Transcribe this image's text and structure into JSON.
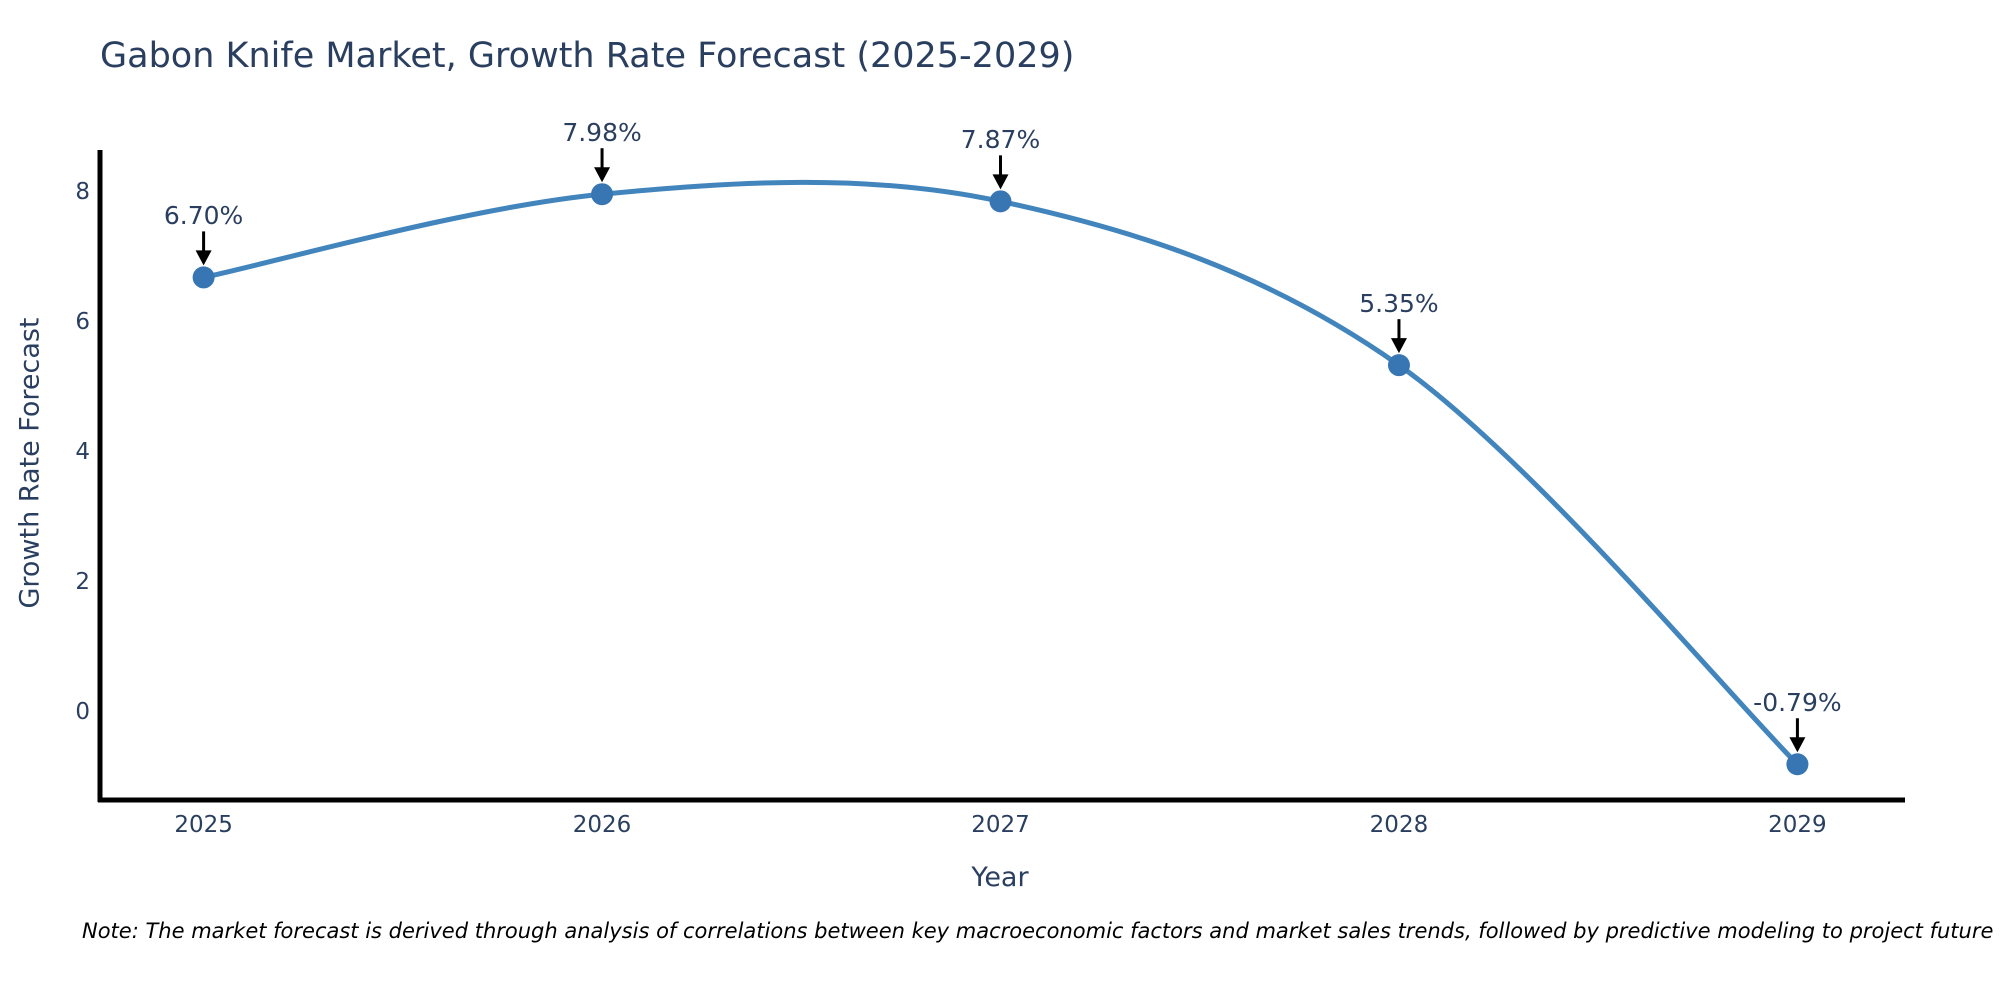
{
  "title": "Gabon Knife Market, Growth Rate Forecast (2025-2029)",
  "note": "Note: The market forecast is derived through analysis of correlations between key macroeconomic factors and market sales trends, followed by predictive modeling to project future sales.",
  "chart_data": {
    "type": "line",
    "line_shape": "spline",
    "title": "Gabon Knife Market, Growth Rate Forecast (2025-2029)",
    "xlabel": "Year",
    "ylabel": "Growth Rate Forecast",
    "categories": [
      "2025",
      "2026",
      "2027",
      "2028",
      "2029"
    ],
    "x": [
      2025,
      2026,
      2027,
      2028,
      2029
    ],
    "series": [
      {
        "name": "Growth Rate Forecast",
        "values": [
          6.7,
          7.98,
          7.87,
          5.35,
          -0.79
        ]
      }
    ],
    "point_labels": [
      "6.70%",
      "7.98%",
      "7.87%",
      "5.35%",
      "-0.79%"
    ],
    "y_ticks": [
      0,
      2,
      4,
      6,
      8
    ],
    "xlim": [
      2024.74,
      2029.27
    ],
    "ylim": [
      -1.34,
      8.66
    ],
    "grid": false,
    "legend": false,
    "colors": {
      "line": "#4285BD",
      "marker": "#3876B3",
      "axis": "#000000",
      "text": "#2A3F5F",
      "annotation_arrow": "#000000",
      "note": "#000000",
      "background": "#FFFFFF"
    }
  }
}
